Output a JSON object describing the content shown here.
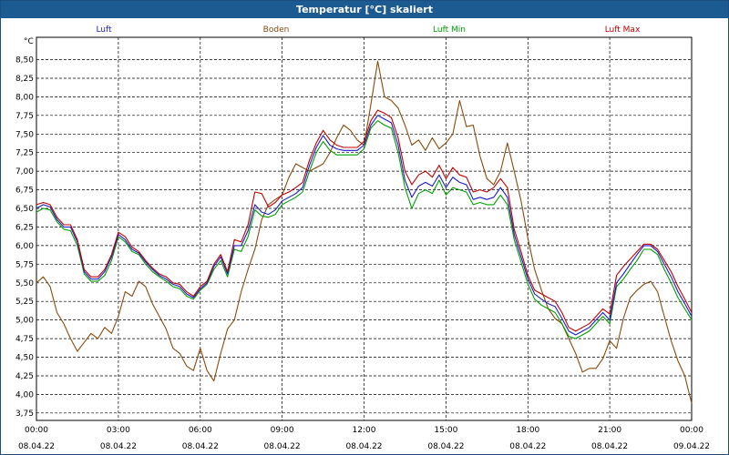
{
  "window": {
    "title": "Temperatur [°C] skaliert"
  },
  "chart_data": {
    "type": "line",
    "title": "Temperatur [°C] skaliert",
    "ylabel": "°C",
    "xlabel": "",
    "ylim": [
      3.65,
      8.8
    ],
    "xlim": [
      0,
      24
    ],
    "grid": true,
    "yticks": [
      3.75,
      4.0,
      4.25,
      4.5,
      4.75,
      5.0,
      5.25,
      5.5,
      5.75,
      6.0,
      6.25,
      6.5,
      6.75,
      7.0,
      7.25,
      7.5,
      7.75,
      8.0,
      8.25,
      8.5
    ],
    "ytick_labels": [
      "3,75",
      "4,00",
      "4,25",
      "4,50",
      "4,75",
      "5,00",
      "5,25",
      "5,50",
      "5,75",
      "6,00",
      "6,25",
      "6,50",
      "6,75",
      "7,00",
      "7,25",
      "7,50",
      "7,75",
      "8,00",
      "8,25",
      "8,50"
    ],
    "xticks": [
      {
        "x": 0,
        "time": "00:00",
        "date": "08.04.22"
      },
      {
        "x": 3,
        "time": "03:00",
        "date": "08.04.22"
      },
      {
        "x": 6,
        "time": "06:00",
        "date": "08.04.22"
      },
      {
        "x": 9,
        "time": "09:00",
        "date": "08.04.22"
      },
      {
        "x": 12,
        "time": "12:00",
        "date": "08.04.22"
      },
      {
        "x": 15,
        "time": "15:00",
        "date": "08.04.22"
      },
      {
        "x": 18,
        "time": "18:00",
        "date": "08.04.22"
      },
      {
        "x": 21,
        "time": "21:00",
        "date": "08.04.22"
      },
      {
        "x": 24,
        "time": "00:00",
        "date": "09.04.22"
      }
    ],
    "series": [
      {
        "name": "Boden",
        "color": "#8b4a0c",
        "x": [
          0,
          0.25,
          0.5,
          0.75,
          1.0,
          1.25,
          1.5,
          1.75,
          2.0,
          2.25,
          2.5,
          2.75,
          3.0,
          3.25,
          3.5,
          3.75,
          4.0,
          4.25,
          4.5,
          4.75,
          5.0,
          5.25,
          5.5,
          5.75,
          6.0,
          6.25,
          6.5,
          6.75,
          7.0,
          7.25,
          7.5,
          7.75,
          8.0,
          8.25,
          8.5,
          8.75,
          9.0,
          9.25,
          9.5,
          9.75,
          10.0,
          10.25,
          10.5,
          10.75,
          11.0,
          11.25,
          11.5,
          11.75,
          12.0,
          12.25,
          12.5,
          12.75,
          13.0,
          13.25,
          13.5,
          13.75,
          14.0,
          14.25,
          14.5,
          14.75,
          15.0,
          15.25,
          15.5,
          15.75,
          16.0,
          16.25,
          16.5,
          16.75,
          17.0,
          17.25,
          17.5,
          17.75,
          18.0,
          18.25,
          18.5,
          18.75,
          19.0,
          19.25,
          19.5,
          19.75,
          20.0,
          20.25,
          20.5,
          20.75,
          21.0,
          21.25,
          21.5,
          21.75,
          22.0,
          22.25,
          22.5,
          22.75,
          23.0,
          23.25,
          23.5,
          23.75,
          24.0
        ],
        "y": [
          5.5,
          5.58,
          5.45,
          5.1,
          4.95,
          4.75,
          4.58,
          4.7,
          4.82,
          4.75,
          4.9,
          4.82,
          5.05,
          5.38,
          5.32,
          5.52,
          5.45,
          5.22,
          5.05,
          4.88,
          4.62,
          4.55,
          4.38,
          4.32,
          4.62,
          4.32,
          4.18,
          4.55,
          4.88,
          5.0,
          5.38,
          5.68,
          5.95,
          6.35,
          6.55,
          6.62,
          6.68,
          6.92,
          7.1,
          7.05,
          7.0,
          7.05,
          7.1,
          7.25,
          7.45,
          7.62,
          7.55,
          7.42,
          7.35,
          7.9,
          8.48,
          8.0,
          7.95,
          7.85,
          7.62,
          7.35,
          7.42,
          7.28,
          7.45,
          7.3,
          7.38,
          7.5,
          7.95,
          7.6,
          7.62,
          7.2,
          6.9,
          6.82,
          7.0,
          7.38,
          7.0,
          6.6,
          6.1,
          5.68,
          5.4,
          5.15,
          5.02,
          4.95,
          4.75,
          4.55,
          4.3,
          4.35,
          4.35,
          4.48,
          4.72,
          4.62,
          5.02,
          5.3,
          5.4,
          5.48,
          5.52,
          5.38,
          5.05,
          4.72,
          4.45,
          4.25,
          3.88
        ]
      },
      {
        "name": "Luft Min",
        "color": "#00a000",
        "x": [
          0,
          0.25,
          0.5,
          0.75,
          1.0,
          1.25,
          1.5,
          1.75,
          2.0,
          2.25,
          2.5,
          2.75,
          3.0,
          3.25,
          3.5,
          3.75,
          4.0,
          4.25,
          4.5,
          4.75,
          5.0,
          5.25,
          5.5,
          5.75,
          6.0,
          6.25,
          6.5,
          6.75,
          7.0,
          7.25,
          7.5,
          7.75,
          8.0,
          8.25,
          8.5,
          8.75,
          9.0,
          9.25,
          9.5,
          9.75,
          10.0,
          10.25,
          10.5,
          10.75,
          11.0,
          11.25,
          11.5,
          11.75,
          12.0,
          12.25,
          12.5,
          12.75,
          13.0,
          13.25,
          13.5,
          13.75,
          14.0,
          14.25,
          14.5,
          14.75,
          15.0,
          15.25,
          15.5,
          15.75,
          16.0,
          16.25,
          16.5,
          16.75,
          17.0,
          17.25,
          17.5,
          17.75,
          18.0,
          18.25,
          18.5,
          18.75,
          19.0,
          19.25,
          19.5,
          19.75,
          20.0,
          20.25,
          20.5,
          20.75,
          21.0,
          21.25,
          21.5,
          21.75,
          22.0,
          22.25,
          22.5,
          22.75,
          23.0,
          23.25,
          23.5,
          23.75,
          24.0
        ],
        "y": [
          6.45,
          6.5,
          6.48,
          6.32,
          6.22,
          6.2,
          6.0,
          5.62,
          5.52,
          5.52,
          5.6,
          5.8,
          6.12,
          6.05,
          5.92,
          5.88,
          5.75,
          5.65,
          5.58,
          5.52,
          5.45,
          5.42,
          5.32,
          5.28,
          5.4,
          5.48,
          5.68,
          5.8,
          5.58,
          5.95,
          5.92,
          6.12,
          6.48,
          6.4,
          6.38,
          6.42,
          6.55,
          6.6,
          6.65,
          6.72,
          7.0,
          7.25,
          7.4,
          7.28,
          7.22,
          7.22,
          7.22,
          7.22,
          7.3,
          7.58,
          7.68,
          7.62,
          7.58,
          7.25,
          6.78,
          6.5,
          6.7,
          6.75,
          6.7,
          6.88,
          6.68,
          6.78,
          6.75,
          6.72,
          6.55,
          6.58,
          6.55,
          6.55,
          6.68,
          6.55,
          6.08,
          5.78,
          5.48,
          5.28,
          5.2,
          5.15,
          5.1,
          4.95,
          4.78,
          4.75,
          4.8,
          4.85,
          4.95,
          5.05,
          4.95,
          5.45,
          5.55,
          5.68,
          5.8,
          5.95,
          5.95,
          5.88,
          5.68,
          5.5,
          5.3,
          5.15,
          5.0
        ]
      },
      {
        "name": "Luft",
        "color": "#1c1cc8",
        "x": [
          0,
          0.25,
          0.5,
          0.75,
          1.0,
          1.25,
          1.5,
          1.75,
          2.0,
          2.25,
          2.5,
          2.75,
          3.0,
          3.25,
          3.5,
          3.75,
          4.0,
          4.25,
          4.5,
          4.75,
          5.0,
          5.25,
          5.5,
          5.75,
          6.0,
          6.25,
          6.5,
          6.75,
          7.0,
          7.25,
          7.5,
          7.75,
          8.0,
          8.25,
          8.5,
          8.75,
          9.0,
          9.25,
          9.5,
          9.75,
          10.0,
          10.25,
          10.5,
          10.75,
          11.0,
          11.25,
          11.5,
          11.75,
          12.0,
          12.25,
          12.5,
          12.75,
          13.0,
          13.25,
          13.5,
          13.75,
          14.0,
          14.25,
          14.5,
          14.75,
          15.0,
          15.25,
          15.5,
          15.75,
          16.0,
          16.25,
          16.5,
          16.75,
          17.0,
          17.25,
          17.5,
          17.75,
          18.0,
          18.25,
          18.5,
          18.75,
          19.0,
          19.25,
          19.5,
          19.75,
          20.0,
          20.25,
          20.5,
          20.75,
          21.0,
          21.25,
          21.5,
          21.75,
          22.0,
          22.25,
          22.5,
          22.75,
          23.0,
          23.25,
          23.5,
          23.75,
          24.0
        ],
        "y": [
          6.5,
          6.55,
          6.52,
          6.35,
          6.25,
          6.25,
          6.05,
          5.65,
          5.55,
          5.55,
          5.65,
          5.85,
          6.15,
          6.08,
          5.95,
          5.9,
          5.78,
          5.68,
          5.6,
          5.55,
          5.48,
          5.45,
          5.35,
          5.3,
          5.42,
          5.5,
          5.72,
          5.85,
          5.62,
          6.0,
          6.0,
          6.2,
          6.55,
          6.45,
          6.42,
          6.48,
          6.6,
          6.65,
          6.7,
          6.78,
          7.08,
          7.32,
          7.48,
          7.35,
          7.3,
          7.28,
          7.28,
          7.28,
          7.35,
          7.62,
          7.75,
          7.7,
          7.65,
          7.35,
          6.88,
          6.65,
          6.8,
          6.85,
          6.8,
          6.95,
          6.78,
          6.92,
          6.85,
          6.82,
          6.62,
          6.65,
          6.62,
          6.65,
          6.78,
          6.65,
          6.15,
          5.85,
          5.55,
          5.35,
          5.28,
          5.22,
          5.18,
          5.02,
          4.85,
          4.8,
          4.85,
          4.9,
          5.0,
          5.1,
          5.0,
          5.5,
          5.62,
          5.75,
          5.88,
          6.0,
          6.0,
          5.92,
          5.75,
          5.58,
          5.38,
          5.22,
          5.05
        ]
      },
      {
        "name": "Luft Max",
        "color": "#c00000",
        "x": [
          0,
          0.25,
          0.5,
          0.75,
          1.0,
          1.25,
          1.5,
          1.75,
          2.0,
          2.25,
          2.5,
          2.75,
          3.0,
          3.25,
          3.5,
          3.75,
          4.0,
          4.25,
          4.5,
          4.75,
          5.0,
          5.25,
          5.5,
          5.75,
          6.0,
          6.25,
          6.5,
          6.75,
          7.0,
          7.25,
          7.5,
          7.75,
          8.0,
          8.25,
          8.5,
          8.75,
          9.0,
          9.25,
          9.5,
          9.75,
          10.0,
          10.25,
          10.5,
          10.75,
          11.0,
          11.25,
          11.5,
          11.75,
          12.0,
          12.25,
          12.5,
          12.75,
          13.0,
          13.25,
          13.5,
          13.75,
          14.0,
          14.25,
          14.5,
          14.75,
          15.0,
          15.25,
          15.5,
          15.75,
          16.0,
          16.25,
          16.5,
          16.75,
          17.0,
          17.25,
          17.5,
          17.75,
          18.0,
          18.25,
          18.5,
          18.75,
          19.0,
          19.25,
          19.5,
          19.75,
          20.0,
          20.25,
          20.5,
          20.75,
          21.0,
          21.25,
          21.5,
          21.75,
          22.0,
          22.25,
          22.5,
          22.75,
          23.0,
          23.25,
          23.5,
          23.75,
          24.0
        ],
        "y": [
          6.55,
          6.58,
          6.55,
          6.38,
          6.28,
          6.28,
          6.08,
          5.68,
          5.58,
          5.58,
          5.68,
          5.88,
          6.18,
          6.12,
          5.98,
          5.92,
          5.8,
          5.7,
          5.62,
          5.58,
          5.5,
          5.48,
          5.38,
          5.32,
          5.45,
          5.52,
          5.75,
          5.88,
          5.65,
          6.08,
          6.05,
          6.28,
          6.72,
          6.7,
          6.52,
          6.58,
          6.68,
          6.72,
          6.78,
          6.85,
          7.15,
          7.38,
          7.55,
          7.42,
          7.35,
          7.32,
          7.32,
          7.32,
          7.4,
          7.68,
          7.82,
          7.78,
          7.72,
          7.45,
          7.0,
          6.82,
          6.95,
          7.0,
          6.92,
          7.08,
          6.9,
          7.05,
          6.95,
          6.92,
          6.72,
          6.75,
          6.72,
          6.78,
          6.9,
          6.78,
          6.22,
          5.92,
          5.6,
          5.4,
          5.35,
          5.3,
          5.25,
          5.1,
          4.9,
          4.85,
          4.9,
          4.95,
          5.05,
          5.15,
          5.08,
          5.6,
          5.72,
          5.82,
          5.92,
          6.02,
          6.02,
          5.95,
          5.8,
          5.65,
          5.45,
          5.28,
          5.1
        ]
      }
    ],
    "legend": [
      {
        "name": "Luft",
        "color": "#1c1cc8"
      },
      {
        "name": "Boden",
        "color": "#8b4a0c"
      },
      {
        "name": "Luft Min",
        "color": "#00a000"
      },
      {
        "name": "Luft Max",
        "color": "#c00000"
      }
    ]
  }
}
